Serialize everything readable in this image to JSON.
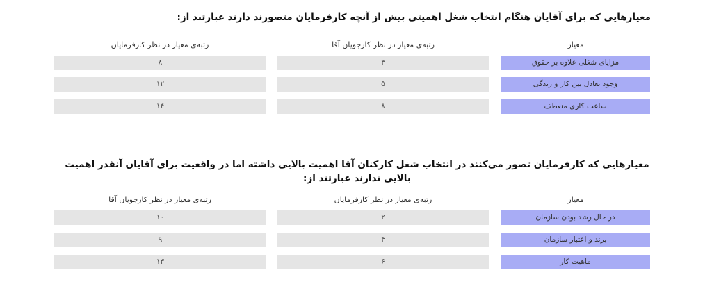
{
  "sections": [
    {
      "title": "معیارهایی که برای آقایان هنگام انتخاب شغل اهمیتی بیش از آنچه کارفرمایان متصورند دارند عبارتند از:",
      "headers": [
        "معیار",
        "رتبه‌ی معیار در نظر کارجویان آقا",
        "رتبه‌ی معیار در نظر کارفرمایان"
      ],
      "rows": [
        [
          "مزایای شغلی علاوه بر حقوق",
          "۳",
          "۸"
        ],
        [
          "وجود تعادل بین کار و زندگی",
          "۵",
          "۱۲"
        ],
        [
          "ساعت کاری منعطف",
          "۸",
          "۱۴"
        ]
      ]
    },
    {
      "title": "معیارهایی که کارفرمایان تصور می‌کنند در انتخاب شغل کارکنان آقا اهمیت بالایی داشته اما در واقعیت برای آقایان آنقدر اهمیت بالایی ندارند عبارتند از:",
      "headers": [
        "معیار",
        "رتبه‌ی معیار در نظر کارفرمایان",
        "رتبه‌ی معیار در نظر کارجویان آقا"
      ],
      "rows": [
        [
          "در حال رشد بودن سازمان",
          "۲",
          "۱۰"
        ],
        [
          "برند و اعتبار سازمان",
          "۴",
          "۹"
        ],
        [
          "ماهیت کار",
          "۶",
          "۱۳"
        ]
      ]
    }
  ],
  "colors": {
    "criterion_bg": "#a8acf5",
    "value_bg": "#e5e5e5"
  }
}
